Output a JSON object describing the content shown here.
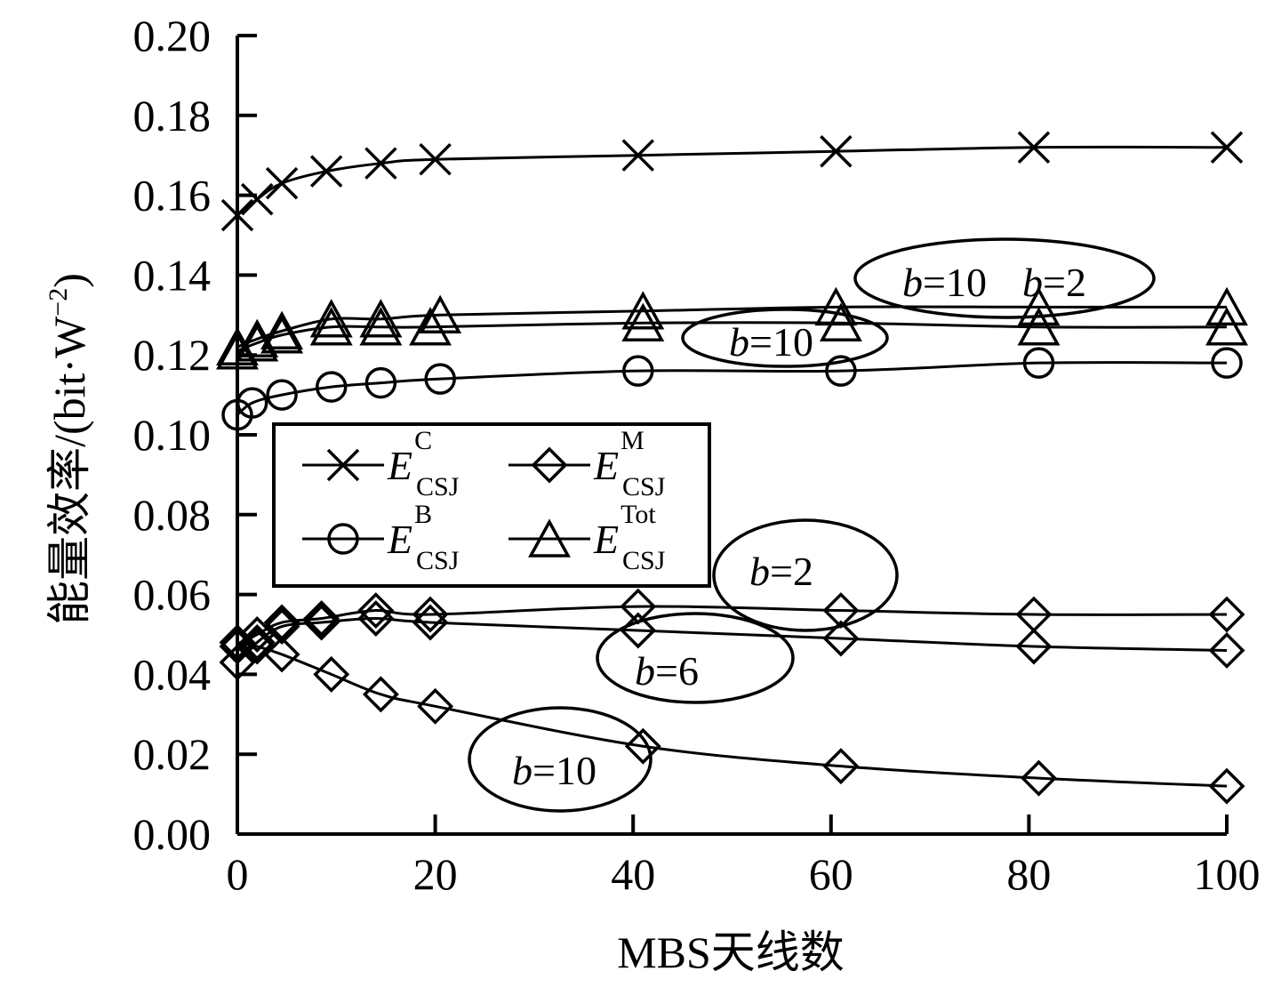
{
  "chart_data": {
    "type": "line",
    "title": "",
    "xlabel": "MBS天线数",
    "ylabel": "能量效率/(bit·W",
    "ylabel_sup": "−2",
    "ylabel_close": ")",
    "xlim": [
      0,
      100
    ],
    "ylim": [
      0,
      0.2
    ],
    "x_ticks": [
      0,
      20,
      40,
      60,
      80,
      100
    ],
    "x_tick_labels": [
      "0",
      "20",
      "40",
      "60",
      "80",
      "100"
    ],
    "y_ticks": [
      0,
      0.02,
      0.04,
      0.06,
      0.08,
      0.1,
      0.12,
      0.14,
      0.16,
      0.18,
      0.2
    ],
    "y_tick_labels": [
      "0.00",
      "0.02",
      "0.04",
      "0.06",
      "0.08",
      "0.10",
      "0.12",
      "0.14",
      "0.16",
      "0.18",
      "0.20"
    ],
    "grid": false,
    "legend_position": "center-left",
    "legend": [
      {
        "marker": "cross",
        "base": "E",
        "sup": "C",
        "sub": "CSJ"
      },
      {
        "marker": "diamond",
        "base": "E",
        "sup": "M",
        "sub": "CSJ"
      },
      {
        "marker": "circle",
        "base": "E",
        "sup": "B",
        "sub": "CSJ"
      },
      {
        "marker": "triangle",
        "base": "E",
        "sup": "Tot",
        "sub": "CSJ"
      }
    ],
    "series": [
      {
        "label": "C",
        "marker": "cross",
        "x": [
          0,
          2,
          4.5,
          9,
          14.5,
          20,
          40.5,
          60.5,
          80.5,
          100
        ],
        "y": [
          0.155,
          0.159,
          0.163,
          0.166,
          0.168,
          0.169,
          0.17,
          0.171,
          0.172,
          0.172
        ]
      },
      {
        "label": "Tot b=2",
        "marker": "triangle",
        "x": [
          0,
          2,
          4.5,
          9.5,
          14.5,
          20.5,
          41,
          60.5,
          81,
          100
        ],
        "y": [
          0.122,
          0.124,
          0.126,
          0.129,
          0.129,
          0.13,
          0.131,
          0.132,
          0.132,
          0.132
        ]
      },
      {
        "label": "Tot b=10",
        "marker": "triangle",
        "x": [
          0,
          2,
          4.5,
          9.5,
          14.5,
          19.5,
          41,
          61,
          81,
          100
        ],
        "y": [
          0.121,
          0.123,
          0.125,
          0.127,
          0.127,
          0.127,
          0.128,
          0.128,
          0.127,
          0.127
        ]
      },
      {
        "label": "B",
        "marker": "circle",
        "x": [
          0,
          1.5,
          4.5,
          9.5,
          14.5,
          20.5,
          40.5,
          61,
          81,
          100
        ],
        "y": [
          0.105,
          0.108,
          0.11,
          0.112,
          0.113,
          0.114,
          0.116,
          0.116,
          0.118,
          0.118
        ]
      },
      {
        "label": "M b=2",
        "marker": "diamond",
        "x": [
          0,
          2,
          4.5,
          8.5,
          14,
          19.5,
          40.5,
          61,
          80.5,
          100
        ],
        "y": [
          0.047,
          0.05,
          0.053,
          0.054,
          0.056,
          0.055,
          0.057,
          0.056,
          0.055,
          0.055
        ]
      },
      {
        "label": "M b=6",
        "marker": "diamond",
        "x": [
          0,
          2,
          4.5,
          8.5,
          14,
          19.5,
          40.5,
          61,
          80.5,
          100
        ],
        "y": [
          0.043,
          0.048,
          0.052,
          0.053,
          0.054,
          0.053,
          0.051,
          0.049,
          0.047,
          0.046
        ]
      },
      {
        "label": "M b=10",
        "marker": "diamond",
        "x": [
          0,
          2,
          4.5,
          9.5,
          14.5,
          20,
          41,
          61,
          81,
          100
        ],
        "y": [
          0.048,
          0.047,
          0.045,
          0.04,
          0.035,
          0.032,
          0.022,
          0.017,
          0.014,
          0.012
        ]
      }
    ],
    "annotations": [
      {
        "text_it": "b",
        "text": "=10",
        "near": "Tot b=10"
      },
      {
        "text_it": "b",
        "text": "=10",
        "near": "Tot upper curves"
      },
      {
        "text_it": "b",
        "text": "=2",
        "near": "Tot upper curves"
      },
      {
        "text_it": "b",
        "text": "=2",
        "near": "M b=2"
      },
      {
        "text_it": "b",
        "text": "=6",
        "near": "M b=6"
      },
      {
        "text_it": "b",
        "text": "=10",
        "near": "M b=10"
      }
    ]
  }
}
